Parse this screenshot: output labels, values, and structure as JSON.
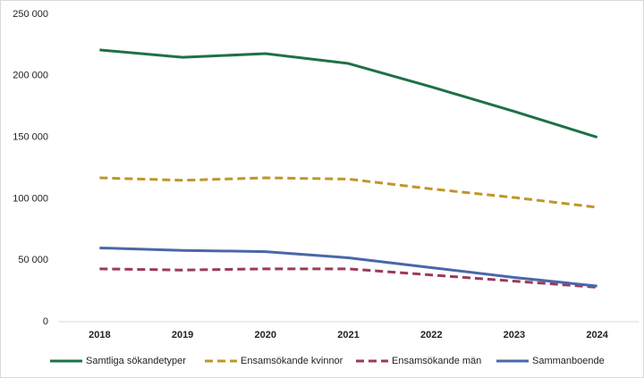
{
  "chart_data": {
    "type": "line",
    "categories": [
      "2018",
      "2019",
      "2020",
      "2021",
      "2022",
      "2023",
      "2024"
    ],
    "series": [
      {
        "name": "Samtliga sökandetyper",
        "color": "#1e7145",
        "dashed": false,
        "values": [
          221000,
          215000,
          218000,
          210000,
          191000,
          171000,
          150000
        ]
      },
      {
        "name": "Ensamsökande kvinnor",
        "color": "#c0962a",
        "dashed": true,
        "values": [
          117000,
          115000,
          117000,
          116000,
          108000,
          101000,
          93000
        ]
      },
      {
        "name": "Ensamsökande män",
        "color": "#9b3a5a",
        "dashed": true,
        "values": [
          43000,
          42000,
          43000,
          43000,
          38000,
          33000,
          28000
        ]
      },
      {
        "name": "Sammanboende",
        "color": "#4a67a8",
        "dashed": false,
        "values": [
          60000,
          58000,
          57000,
          52000,
          44000,
          36000,
          29000
        ]
      }
    ],
    "ylim": [
      0,
      250000
    ],
    "yticks": [
      {
        "value": 0,
        "label": "0"
      },
      {
        "value": 50000,
        "label": "50 000"
      },
      {
        "value": 100000,
        "label": "100 000"
      },
      {
        "value": 150000,
        "label": "150 000"
      },
      {
        "value": 200000,
        "label": "200 000"
      },
      {
        "value": 250000,
        "label": "250 000"
      }
    ],
    "grid": false,
    "legend": "bottom"
  }
}
